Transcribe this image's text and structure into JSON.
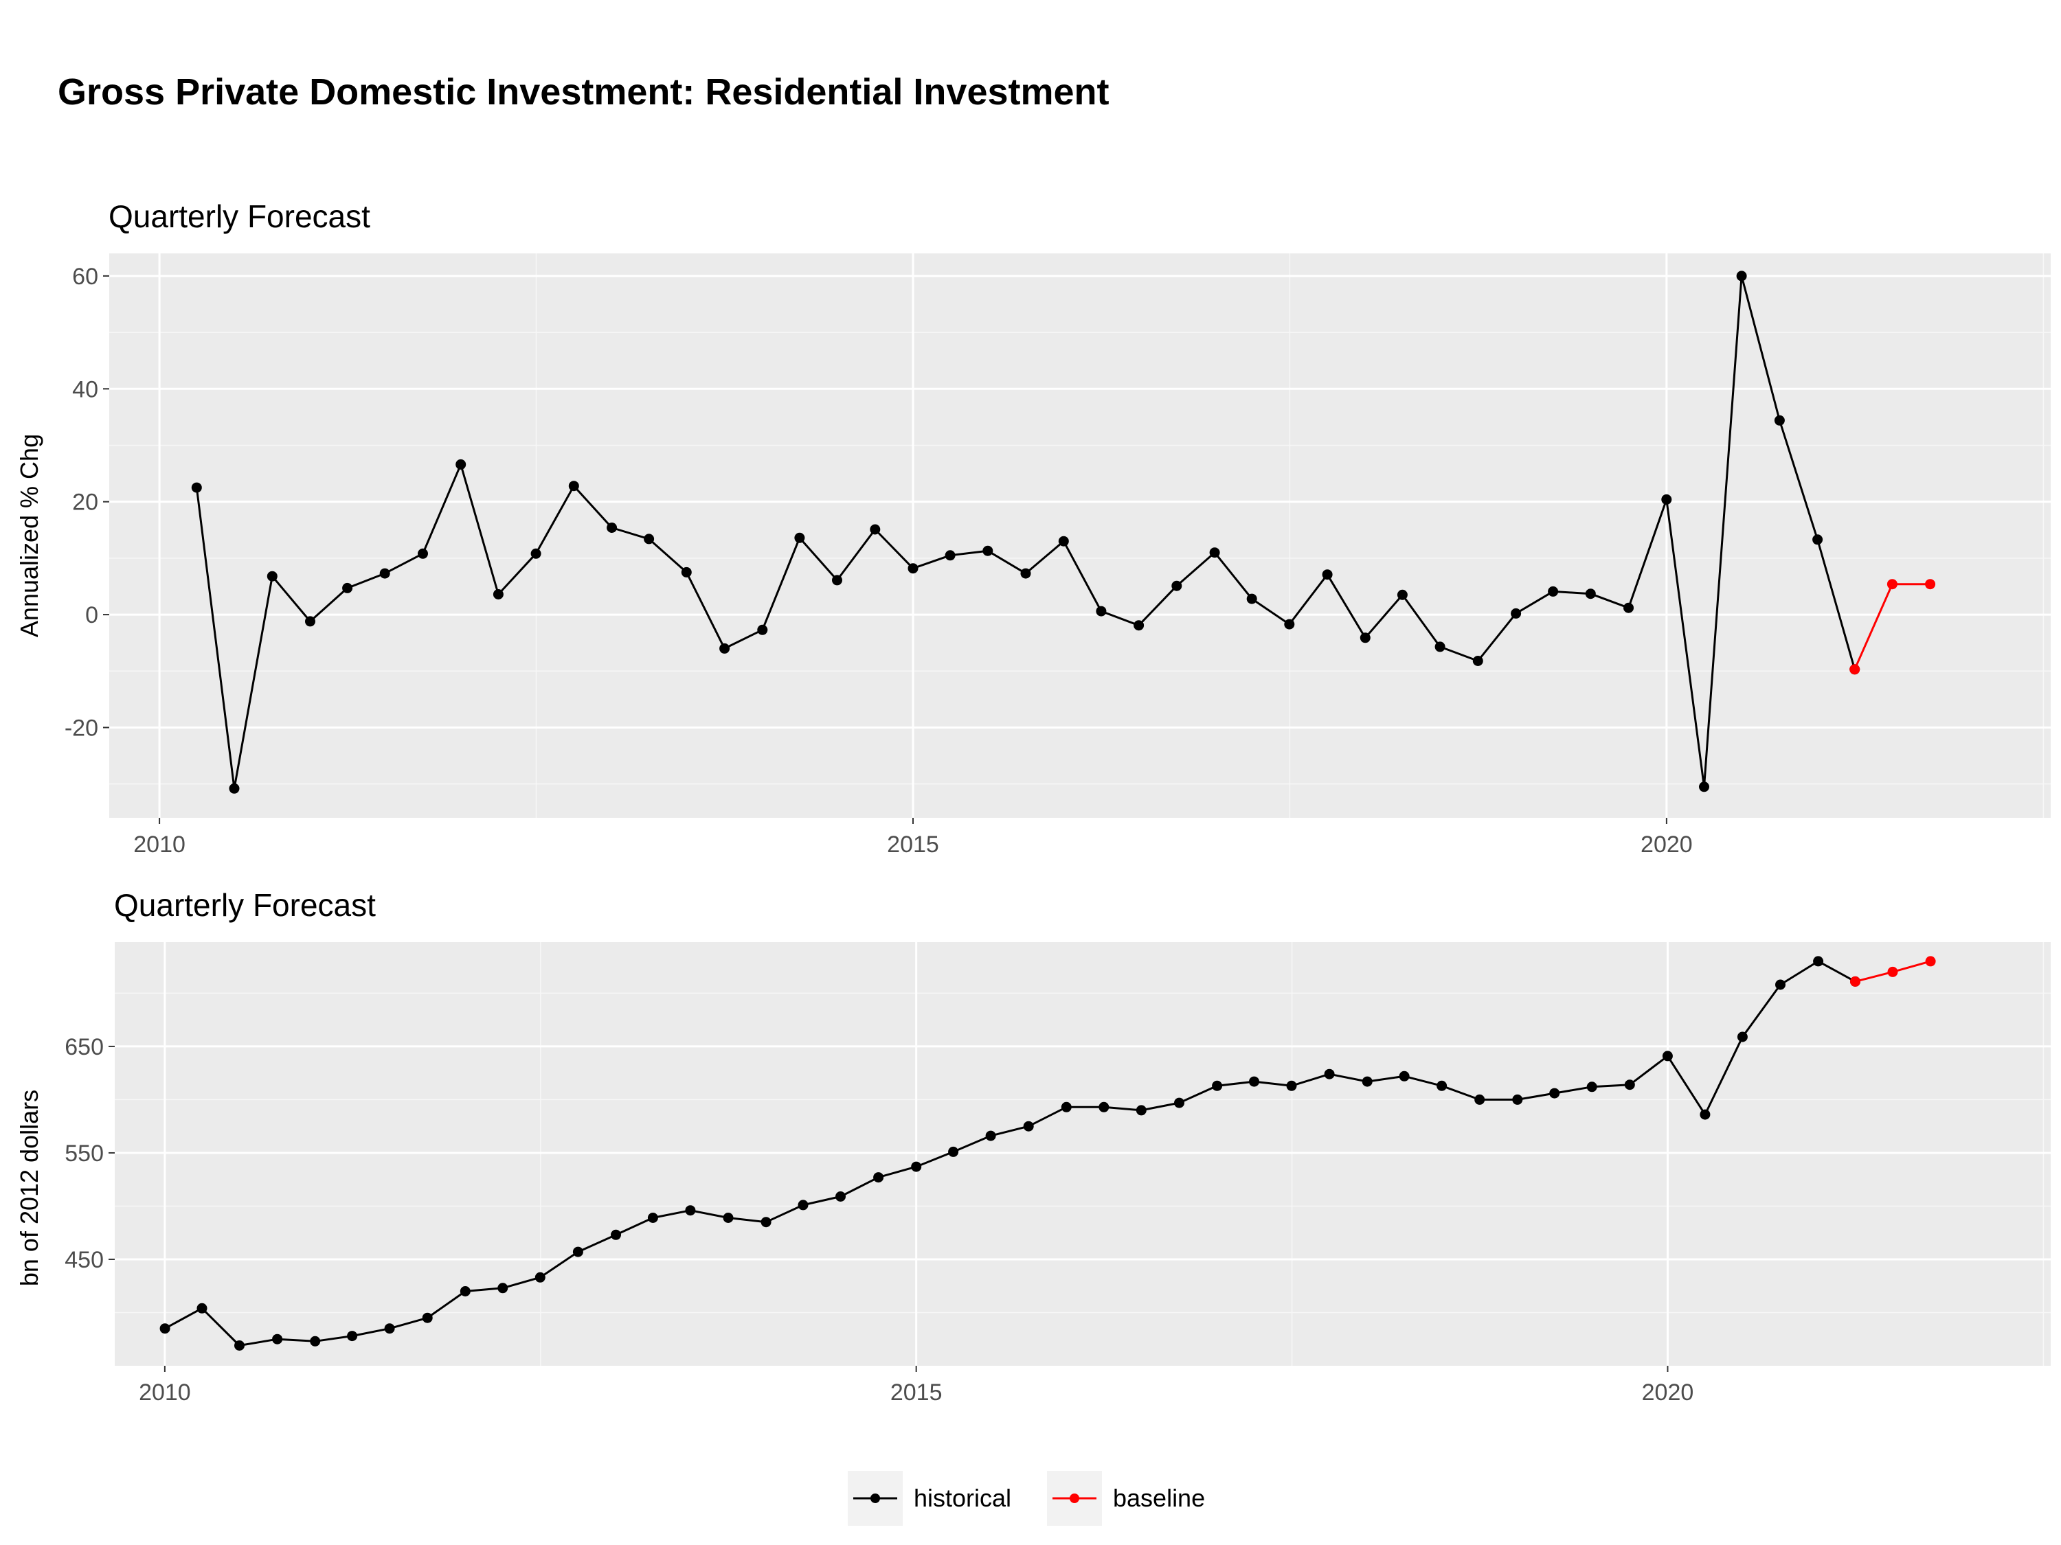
{
  "title": "Gross Private Domestic Investment: Residential Investment",
  "legend": {
    "entries": [
      {
        "label": "historical",
        "color": "#000000"
      },
      {
        "label": "baseline",
        "color": "#ff0000"
      }
    ],
    "position": "bottom"
  },
  "chart_data": [
    {
      "type": "line",
      "title": "Quarterly Forecast",
      "xlabel": "",
      "ylabel": "Annualized % Chg",
      "xlim": [
        "2009-09-01",
        "2022-07-20"
      ],
      "ylim": [
        -36,
        64
      ],
      "xticks": [
        "2010",
        "2015",
        "2020"
      ],
      "yticks": [
        "-20",
        "0",
        "20",
        "40",
        "60"
      ],
      "grid": true,
      "series": [
        {
          "name": "historical",
          "color": "#000000",
          "x": [
            "2010-04-01",
            "2010-07-01",
            "2010-10-01",
            "2011-01-01",
            "2011-04-01",
            "2011-07-01",
            "2011-10-01",
            "2012-01-01",
            "2012-04-01",
            "2012-07-01",
            "2012-10-01",
            "2013-01-01",
            "2013-04-01",
            "2013-07-01",
            "2013-10-01",
            "2014-01-01",
            "2014-04-01",
            "2014-07-01",
            "2014-10-01",
            "2015-01-01",
            "2015-04-01",
            "2015-07-01",
            "2015-10-01",
            "2016-01-01",
            "2016-04-01",
            "2016-07-01",
            "2016-10-01",
            "2017-01-01",
            "2017-04-01",
            "2017-07-01",
            "2017-10-01",
            "2018-01-01",
            "2018-04-01",
            "2018-07-01",
            "2018-10-01",
            "2019-01-01",
            "2019-04-01",
            "2019-07-01",
            "2019-10-01",
            "2020-01-01",
            "2020-04-01",
            "2020-07-01",
            "2020-10-01",
            "2021-01-01",
            "2021-04-01"
          ],
          "y": [
            22.5,
            -30.8,
            6.8,
            -1.2,
            4.7,
            7.3,
            10.8,
            26.6,
            3.6,
            10.8,
            22.8,
            15.4,
            13.4,
            7.5,
            -6.0,
            -2.7,
            13.6,
            6.1,
            15.1,
            8.2,
            10.5,
            11.3,
            7.3,
            13.0,
            0.6,
            -1.9,
            5.1,
            11.0,
            2.8,
            -1.7,
            7.1,
            -4.1,
            3.5,
            -5.7,
            -8.2,
            0.2,
            4.1,
            3.7,
            1.2,
            20.4,
            -30.5,
            60.0,
            34.4,
            13.3,
            -9.7
          ]
        },
        {
          "name": "baseline",
          "color": "#ff0000",
          "x": [
            "2021-04-01",
            "2021-07-01",
            "2021-10-01"
          ],
          "y": [
            -9.7,
            5.4,
            5.4
          ]
        }
      ]
    },
    {
      "type": "line",
      "title": "Quarterly Forecast",
      "xlabel": "",
      "ylabel": "bn of 2012 dollars",
      "xlim": [
        "2009-09-01",
        "2022-07-20"
      ],
      "ylim": [
        350,
        748
      ],
      "xticks": [
        "2010",
        "2015",
        "2020"
      ],
      "yticks": [
        "450",
        "550",
        "650"
      ],
      "grid": true,
      "series": [
        {
          "name": "historical",
          "color": "#000000",
          "x": [
            "2010-01-01",
            "2010-04-01",
            "2010-07-01",
            "2010-10-01",
            "2011-01-01",
            "2011-04-01",
            "2011-07-01",
            "2011-10-01",
            "2012-01-01",
            "2012-04-01",
            "2012-07-01",
            "2012-10-01",
            "2013-01-01",
            "2013-04-01",
            "2013-07-01",
            "2013-10-01",
            "2014-01-01",
            "2014-04-01",
            "2014-07-01",
            "2014-10-01",
            "2015-01-01",
            "2015-04-01",
            "2015-07-01",
            "2015-10-01",
            "2016-01-01",
            "2016-04-01",
            "2016-07-01",
            "2016-10-01",
            "2017-01-01",
            "2017-04-01",
            "2017-07-01",
            "2017-10-01",
            "2018-01-01",
            "2018-04-01",
            "2018-07-01",
            "2018-10-01",
            "2019-01-01",
            "2019-04-01",
            "2019-07-01",
            "2019-10-01",
            "2020-01-01",
            "2020-04-01",
            "2020-07-01",
            "2020-10-01",
            "2021-01-01",
            "2021-04-01"
          ],
          "y": [
            385,
            404,
            369,
            375,
            373,
            378,
            385,
            395,
            420,
            423,
            433,
            457,
            473,
            489,
            496,
            489,
            485,
            501,
            509,
            527,
            537,
            551,
            566,
            575,
            593,
            593,
            590,
            597,
            613,
            617,
            613,
            624,
            617,
            622,
            613,
            600,
            600,
            606,
            612,
            614,
            641,
            586,
            659,
            708,
            730,
            711
          ]
        },
        {
          "name": "baseline",
          "color": "#ff0000",
          "x": [
            "2021-04-01",
            "2021-07-01",
            "2021-10-01"
          ],
          "y": [
            711,
            720,
            730
          ]
        }
      ]
    }
  ]
}
